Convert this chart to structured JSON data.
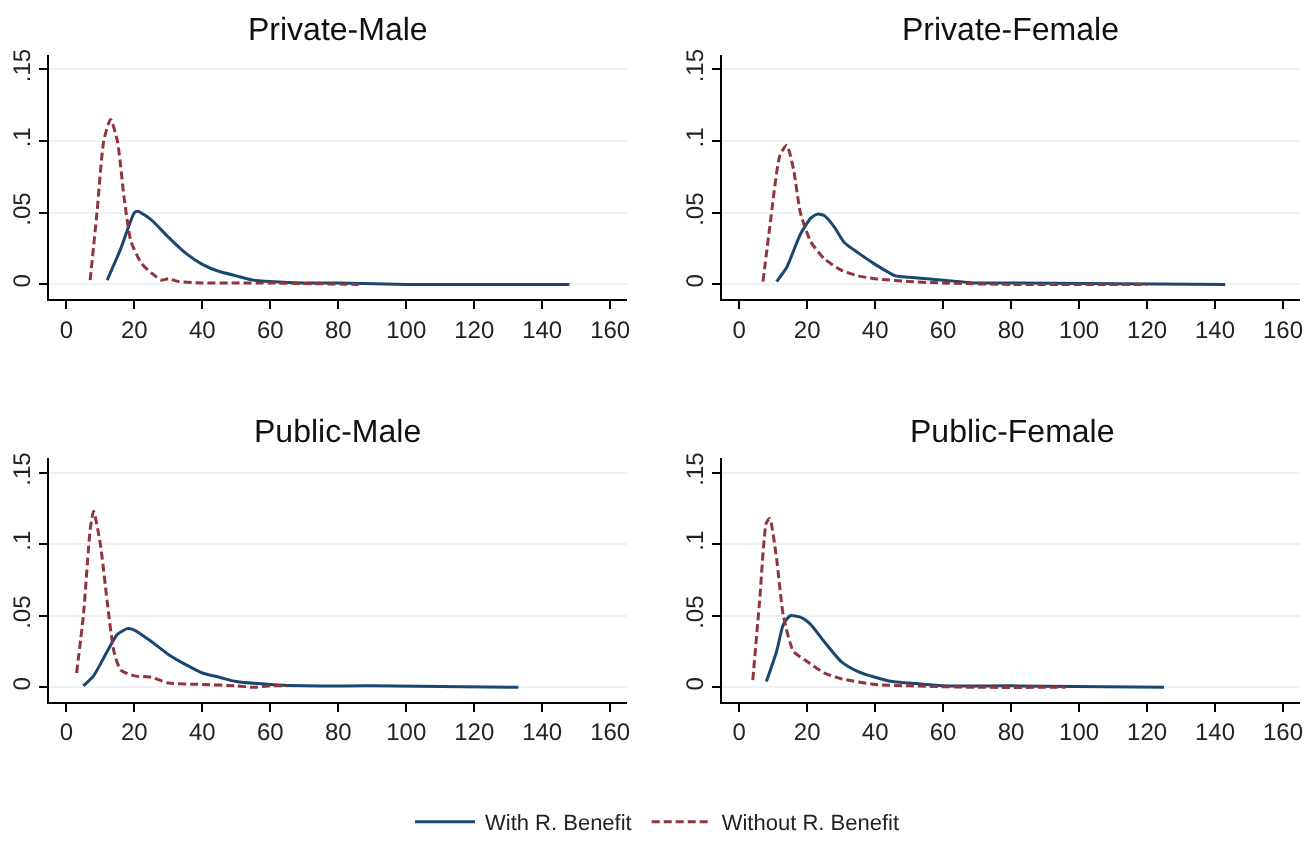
{
  "chart_data": [
    {
      "type": "line",
      "title": "Private-Male",
      "xlim": [
        -5,
        165
      ],
      "xticks": [
        0,
        20,
        40,
        60,
        80,
        100,
        120,
        140,
        160
      ],
      "ylim": [
        -0.01,
        0.16
      ],
      "yticks": [
        {
          "value": 0,
          "label": "0"
        },
        {
          "value": 0.05,
          "label": ".05"
        },
        {
          "value": 0.1,
          "label": ".1"
        },
        {
          "value": 0.15,
          "label": ".15"
        }
      ],
      "grid": "y",
      "legend": "bottom",
      "series": [
        {
          "name": "With R. Benefit",
          "color": "#1a476f",
          "line_style": "solid",
          "x": [
            12,
            16,
            20,
            21,
            25,
            30,
            35,
            40,
            45,
            50,
            55,
            60,
            70,
            80,
            100,
            148
          ],
          "values": [
            0.003,
            0.025,
            0.05,
            0.051,
            0.045,
            0.033,
            0.022,
            0.014,
            0.009,
            0.006,
            0.003,
            0.002,
            0.001,
            0.001,
            0,
            0
          ]
        },
        {
          "name": "Without R. Benefit",
          "color": "#90353b",
          "line_style": "dashed",
          "x": [
            7,
            9,
            11,
            13,
            15,
            17,
            19,
            22,
            25,
            28,
            30,
            33,
            40,
            50,
            60,
            86
          ],
          "values": [
            0.003,
            0.05,
            0.1,
            0.115,
            0.1,
            0.06,
            0.03,
            0.015,
            0.008,
            0.003,
            0.004,
            0.002,
            0.001,
            0.001,
            0.001,
            0
          ]
        }
      ]
    },
    {
      "type": "line",
      "title": "Private-Female",
      "xlim": [
        -5,
        165
      ],
      "xticks": [
        0,
        20,
        40,
        60,
        80,
        100,
        120,
        140,
        160
      ],
      "ylim": [
        -0.01,
        0.16
      ],
      "yticks": [
        {
          "value": 0,
          "label": "0"
        },
        {
          "value": 0.05,
          "label": ".05"
        },
        {
          "value": 0.1,
          "label": ".1"
        },
        {
          "value": 0.15,
          "label": ".15"
        }
      ],
      "grid": "y",
      "series": [
        {
          "color": "#1a476f",
          "line_style": "solid",
          "x": [
            11,
            14,
            18,
            21,
            23,
            25,
            28,
            31,
            35,
            40,
            46,
            50,
            60,
            70,
            80,
            143
          ],
          "values": [
            0.002,
            0.012,
            0.035,
            0.046,
            0.049,
            0.048,
            0.04,
            0.029,
            0.022,
            0.014,
            0.006,
            0.005,
            0.003,
            0.001,
            0.001,
            0
          ]
        },
        {
          "color": "#90353b",
          "line_style": "dashed",
          "x": [
            7,
            9,
            12,
            14,
            16,
            18,
            21,
            25,
            30,
            35,
            40,
            50,
            60,
            80,
            120
          ],
          "values": [
            0.002,
            0.04,
            0.09,
            0.097,
            0.08,
            0.05,
            0.03,
            0.018,
            0.01,
            0.006,
            0.004,
            0.002,
            0.001,
            0,
            0
          ]
        }
      ]
    },
    {
      "type": "line",
      "title": "Public-Male",
      "xlim": [
        -5,
        165
      ],
      "xticks": [
        0,
        20,
        40,
        60,
        80,
        100,
        120,
        140,
        160
      ],
      "ylim": [
        -0.01,
        0.16
      ],
      "yticks": [
        {
          "value": 0,
          "label": "0"
        },
        {
          "value": 0.05,
          "label": ".05"
        },
        {
          "value": 0.1,
          "label": ".1"
        },
        {
          "value": 0.15,
          "label": ".15"
        }
      ],
      "grid": "y",
      "series": [
        {
          "color": "#1a476f",
          "line_style": "solid",
          "x": [
            5,
            8,
            12,
            15,
            18,
            20,
            25,
            30,
            35,
            40,
            45,
            50,
            60,
            70,
            90,
            133
          ],
          "values": [
            0.001,
            0.008,
            0.025,
            0.037,
            0.041,
            0.04,
            0.032,
            0.023,
            0.016,
            0.01,
            0.007,
            0.004,
            0.002,
            0.001,
            0.001,
            0
          ]
        },
        {
          "color": "#90353b",
          "line_style": "dashed",
          "x": [
            3,
            5,
            7,
            8,
            10,
            12,
            14,
            16,
            20,
            25,
            30,
            40,
            50,
            55,
            60,
            65
          ],
          "values": [
            0.01,
            0.05,
            0.11,
            0.123,
            0.1,
            0.06,
            0.025,
            0.012,
            0.008,
            0.007,
            0.003,
            0.002,
            0.001,
            0,
            0.001,
            0.001
          ]
        }
      ]
    },
    {
      "type": "line",
      "title": "Public-Female",
      "xlim": [
        -5,
        165
      ],
      "xticks": [
        0,
        20,
        40,
        60,
        80,
        100,
        120,
        140,
        160
      ],
      "ylim": [
        -0.01,
        0.16
      ],
      "yticks": [
        {
          "value": 0,
          "label": "0"
        },
        {
          "value": 0.05,
          "label": ".05"
        },
        {
          "value": 0.1,
          "label": ".1"
        },
        {
          "value": 0.15,
          "label": ".15"
        }
      ],
      "grid": "y",
      "series": [
        {
          "color": "#1a476f",
          "line_style": "solid",
          "x": [
            8,
            11,
            13,
            15,
            18,
            21,
            25,
            30,
            35,
            40,
            45,
            50,
            60,
            80,
            125
          ],
          "values": [
            0.004,
            0.025,
            0.044,
            0.05,
            0.049,
            0.044,
            0.032,
            0.018,
            0.011,
            0.007,
            0.004,
            0.003,
            0.001,
            0.001,
            0
          ]
        },
        {
          "color": "#90353b",
          "line_style": "dashed",
          "x": [
            4,
            6,
            8,
            9,
            11,
            13,
            16,
            20,
            25,
            30,
            40,
            50,
            70,
            96
          ],
          "values": [
            0.005,
            0.06,
            0.115,
            0.118,
            0.09,
            0.05,
            0.025,
            0.018,
            0.01,
            0.006,
            0.002,
            0.001,
            0,
            0
          ]
        }
      ]
    }
  ]
}
